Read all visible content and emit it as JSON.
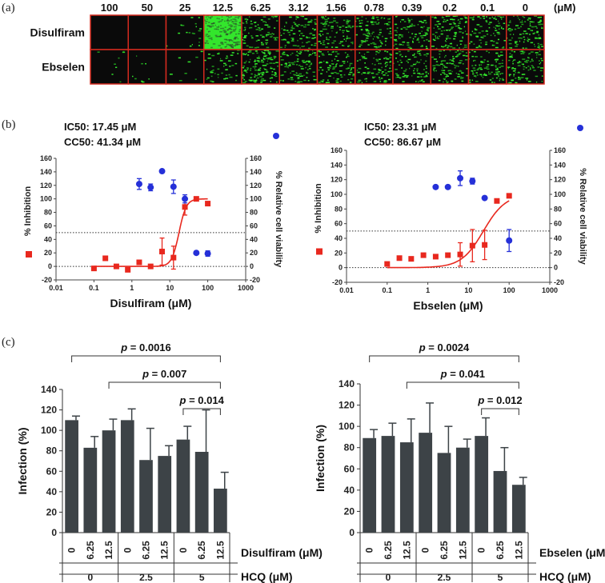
{
  "panels": {
    "a": "(a)",
    "b": "(b)",
    "c": "(c)"
  },
  "panel_a": {
    "unit": "(μM)",
    "doses": [
      "100",
      "50",
      "25",
      "12.5",
      "6.25",
      "3.12",
      "1.56",
      "0.78",
      "0.39",
      "0.2",
      "0.1",
      "0"
    ],
    "rows": [
      {
        "label": "Disulfiram",
        "green_level": [
          0.0,
          0.0,
          0.12,
          0.95,
          0.55,
          0.55,
          0.55,
          0.55,
          0.55,
          0.6,
          0.55,
          0.6
        ]
      },
      {
        "label": "Ebselen",
        "green_level": [
          0.05,
          0.05,
          0.05,
          0.3,
          0.9,
          0.6,
          0.55,
          0.55,
          0.5,
          0.6,
          0.6,
          0.6
        ]
      }
    ],
    "colors": {
      "border": "#d42a1e",
      "green": "#33e62c",
      "dark": "#0a0a0a"
    }
  },
  "chart_data": [
    {
      "type": "scatter",
      "id": "disulfiram_dose_response",
      "annotation_lines": [
        "IC50: 17.45 μM",
        "CC50: 41.34 μM"
      ],
      "xlabel": "Disulfiram (μM)",
      "xscale": "log",
      "xlim": [
        0.01,
        1000
      ],
      "x_ticks": [
        "0.01",
        "0.1",
        "1",
        "10",
        "100",
        "1000"
      ],
      "ylabel_left": "% Inhibition",
      "ylabel_right": "% Relative cell viability",
      "ylim": [
        -20,
        160
      ],
      "y_ticks": [
        "-20",
        "0",
        "20",
        "40",
        "60",
        "80",
        "100",
        "120",
        "140",
        "160"
      ],
      "reference_lines": [
        0,
        50
      ],
      "series": [
        {
          "name": "% Inhibition",
          "marker": "square",
          "color": "#e8281e",
          "x": [
            0.1,
            0.2,
            0.39,
            0.78,
            1.56,
            3.12,
            6.25,
            12.5,
            25,
            50,
            100
          ],
          "y": [
            -3,
            12,
            0,
            -5,
            6,
            0,
            22,
            13,
            88,
            100,
            93
          ],
          "err": [
            0,
            0,
            0,
            0,
            0,
            0,
            20,
            17,
            12,
            0,
            0
          ]
        },
        {
          "name": "% Relative cell viability",
          "marker": "circle",
          "color": "#2530d8",
          "x": [
            1.56,
            3.12,
            6.25,
            12.5,
            25,
            50,
            100
          ],
          "y": [
            122,
            117,
            141,
            118,
            100,
            20,
            19
          ],
          "err": [
            8,
            5,
            0,
            10,
            6,
            0,
            4
          ]
        },
        {
          "name": "Fit",
          "type": "line",
          "color": "#e8281e",
          "ic50": 17.45,
          "bottom": 0,
          "top": 100,
          "hill": 4.5
        }
      ]
    },
    {
      "type": "scatter",
      "id": "ebselen_dose_response",
      "annotation_lines": [
        "IC50: 23.31 μM",
        "CC50: 86.67 μM"
      ],
      "xlabel": "Ebselen (μM)",
      "xscale": "log",
      "xlim": [
        0.01,
        1000
      ],
      "x_ticks": [
        "0.01",
        "0.1",
        "1",
        "10",
        "100",
        "1000"
      ],
      "ylabel_left": "% Inhibition",
      "ylabel_right": "% Relative cell viability",
      "ylim": [
        -20,
        160
      ],
      "y_ticks": [
        "-20",
        "0",
        "20",
        "40",
        "60",
        "80",
        "100",
        "120",
        "140",
        "160"
      ],
      "reference_lines": [
        0,
        50
      ],
      "series": [
        {
          "name": "% Inhibition",
          "marker": "square",
          "color": "#e8281e",
          "x": [
            0.1,
            0.2,
            0.39,
            0.78,
            1.56,
            3.12,
            6.25,
            12.5,
            25,
            50,
            100
          ],
          "y": [
            5,
            13,
            12,
            17,
            15,
            17,
            18,
            30,
            31,
            91,
            98
          ],
          "err": [
            0,
            0,
            0,
            0,
            0,
            0,
            16,
            22,
            20,
            0,
            0
          ]
        },
        {
          "name": "% Relative cell viability",
          "marker": "circle",
          "color": "#2530d8",
          "x": [
            1.56,
            3.12,
            6.25,
            12.5,
            25,
            100
          ],
          "y": [
            110,
            110,
            122,
            118,
            95,
            37
          ],
          "err": [
            0,
            0,
            10,
            4,
            0,
            15
          ]
        },
        {
          "name": "Fit",
          "type": "line",
          "color": "#e8281e",
          "ic50": 23.31,
          "bottom": 0,
          "top": 100,
          "hill": 1.6
        }
      ]
    },
    {
      "type": "bar",
      "id": "disulfiram_hcq",
      "ylabel": "Infection (%)",
      "ylim": [
        0,
        140
      ],
      "y_ticks": [
        "0",
        "20",
        "40",
        "60",
        "80",
        "100",
        "120",
        "140"
      ],
      "categories": [
        "0",
        "6.25",
        "12.5",
        "0",
        "6.25",
        "12.5",
        "0",
        "6.25",
        "12.5"
      ],
      "values": [
        110,
        83,
        100,
        110,
        71,
        75,
        91,
        79,
        43
      ],
      "errors": [
        4,
        11,
        11,
        11,
        31,
        10,
        13,
        41,
        16
      ],
      "drug_label": "Disulfiram (μM)",
      "hcq_label": "HCQ (μM)",
      "hcq_groups": [
        "0",
        "2.5",
        "5"
      ],
      "brackets": [
        {
          "text": "p = 0.0016",
          "p": "p",
          "val": " = 0.0016",
          "from": 0,
          "to": 8
        },
        {
          "text": "p = 0.007",
          "p": "p",
          "val": " = 0.007",
          "from": 2,
          "to": 8
        },
        {
          "text": "p = 0.014",
          "p": "p",
          "val": " = 0.014",
          "from": 6,
          "to": 8
        }
      ],
      "bar_color": "#3d4347"
    },
    {
      "type": "bar",
      "id": "ebselen_hcq",
      "ylabel": "Infection (%)",
      "ylim": [
        0,
        140
      ],
      "y_ticks": [
        "0",
        "20",
        "40",
        "60",
        "80",
        "100",
        "120",
        "140"
      ],
      "categories": [
        "0",
        "6.25",
        "12.5",
        "0",
        "6.25",
        "12.5",
        "0",
        "6.25",
        "12.5"
      ],
      "values": [
        89,
        91,
        85,
        94,
        75,
        80,
        91,
        58,
        45
      ],
      "errors": [
        8,
        12,
        22,
        28,
        25,
        8,
        17,
        22,
        7
      ],
      "drug_label": "Ebselen (μM)",
      "hcq_label": "HCQ (μM)",
      "hcq_groups": [
        "0",
        "2.5",
        "5"
      ],
      "brackets": [
        {
          "text": "p = 0.0024",
          "p": "p",
          "val": " = 0.0024",
          "from": 0,
          "to": 8
        },
        {
          "text": "p = 0.041",
          "p": "p",
          "val": " = 0.041",
          "from": 2,
          "to": 8
        },
        {
          "text": "p = 0.012",
          "p": "p",
          "val": " = 0.012",
          "from": 6,
          "to": 8
        }
      ],
      "bar_color": "#3d4347"
    }
  ]
}
